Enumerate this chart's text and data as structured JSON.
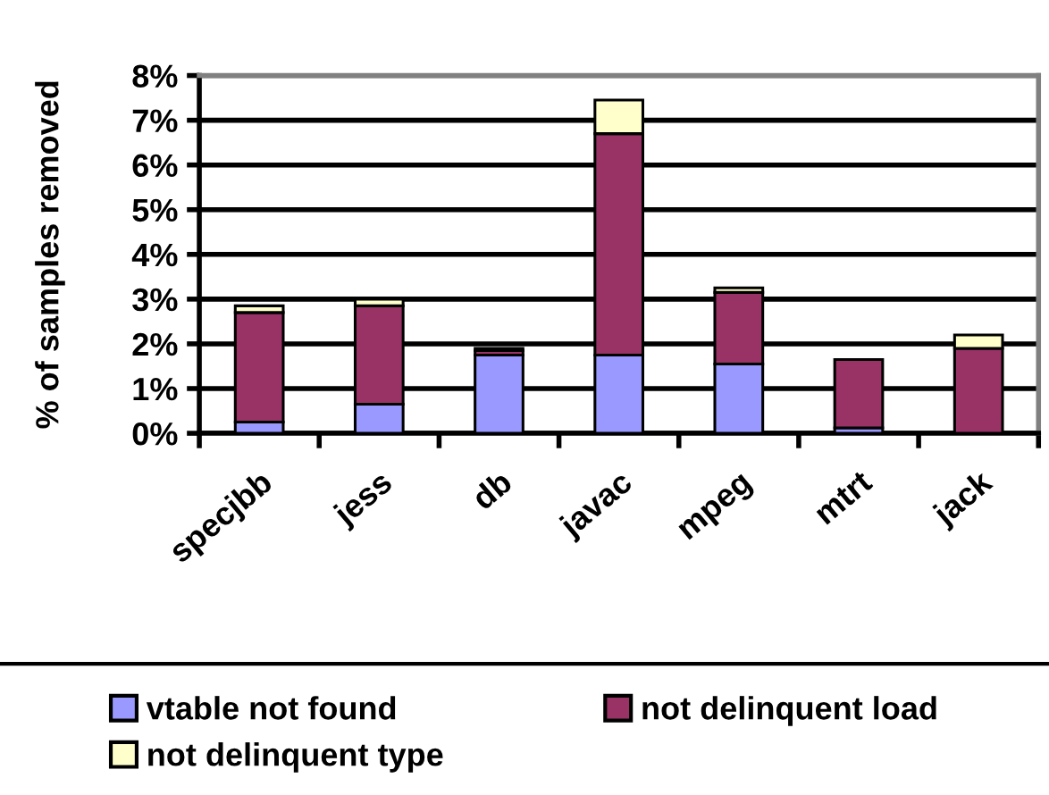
{
  "chart_data": {
    "type": "bar",
    "stacked": true,
    "ylabel": "% of samples removed",
    "categories": [
      "specjbb",
      "jess",
      "db",
      "javac",
      "mpeg",
      "mtrt",
      "jack"
    ],
    "series": [
      {
        "name": "vtable not found",
        "color": "#9999ff",
        "values": [
          0.25,
          0.65,
          1.75,
          1.75,
          1.55,
          0.12,
          0
        ]
      },
      {
        "name": "not delinquent load",
        "color": "#993366",
        "values": [
          2.45,
          2.2,
          0.1,
          4.95,
          1.6,
          1.53,
          1.9
        ]
      },
      {
        "name": "not delinquent type",
        "color": "#ffffcc",
        "values": [
          0.15,
          0.15,
          0.05,
          0.75,
          0.1,
          null,
          0.3
        ]
      }
    ],
    "ylim": [
      0,
      8
    ],
    "yticks": [
      {
        "value": 0,
        "label": "0%"
      },
      {
        "value": 1,
        "label": "1%"
      },
      {
        "value": 2,
        "label": "2%"
      },
      {
        "value": 3,
        "label": "3%"
      },
      {
        "value": 4,
        "label": "4%"
      },
      {
        "value": 5,
        "label": "5%"
      },
      {
        "value": 6,
        "label": "6%"
      },
      {
        "value": 7,
        "label": "7%"
      },
      {
        "value": 8,
        "label": "8%"
      }
    ],
    "grid": "y",
    "legend": "bottom"
  }
}
